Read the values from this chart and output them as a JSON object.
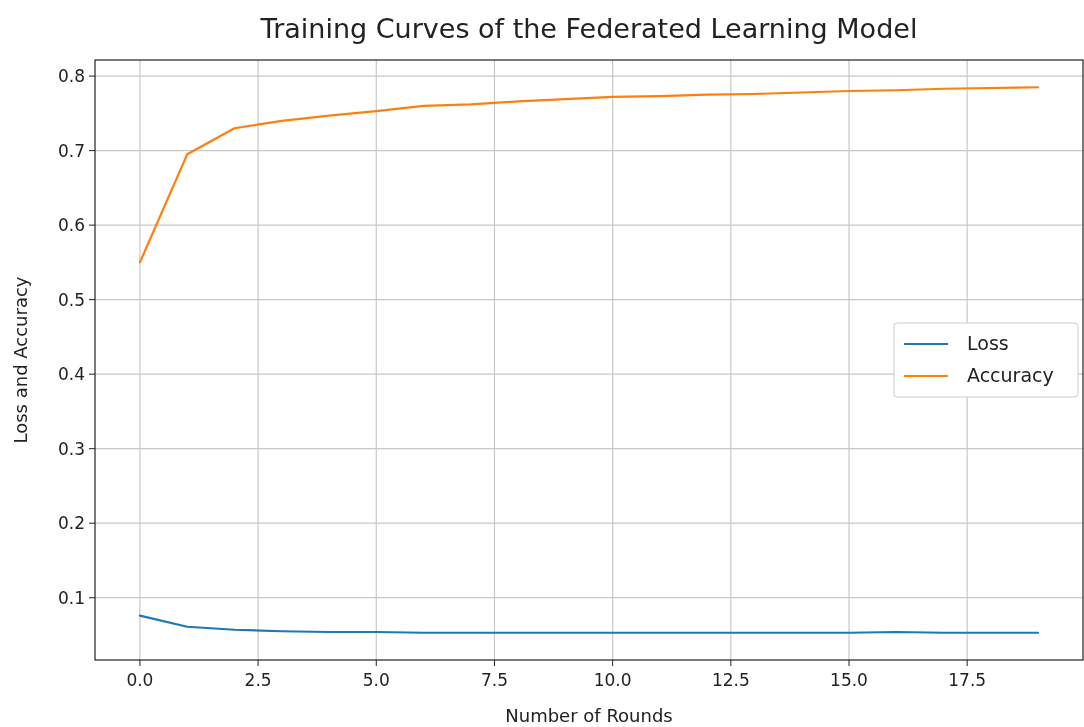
{
  "chart_data": {
    "type": "line",
    "title": "Training Curves of the Federated Learning Model",
    "xlabel": "Number of Rounds",
    "ylabel": "Loss and Accuracy",
    "x": [
      0,
      1,
      2,
      3,
      4,
      5,
      6,
      7,
      8,
      9,
      10,
      11,
      12,
      13,
      14,
      15,
      16,
      17,
      18,
      19
    ],
    "series": [
      {
        "name": "Loss",
        "color": "#1f77b4",
        "values": [
          0.076,
          0.061,
          0.057,
          0.055,
          0.054,
          0.054,
          0.053,
          0.053,
          0.053,
          0.053,
          0.053,
          0.053,
          0.053,
          0.053,
          0.053,
          0.053,
          0.054,
          0.053,
          0.053,
          0.053
        ]
      },
      {
        "name": "Accuracy",
        "color": "#ff7f0e",
        "values": [
          0.55,
          0.695,
          0.73,
          0.74,
          0.747,
          0.753,
          0.76,
          0.762,
          0.766,
          0.769,
          0.772,
          0.773,
          0.775,
          0.776,
          0.778,
          0.78,
          0.781,
          0.783,
          0.784,
          0.785
        ]
      }
    ],
    "xlim": [
      -0.95,
      19.95
    ],
    "ylim": [
      0.0164,
      0.8216
    ],
    "xticks": [
      {
        "value": 0,
        "label": "0.0"
      },
      {
        "value": 2.5,
        "label": "2.5"
      },
      {
        "value": 5,
        "label": "5.0"
      },
      {
        "value": 7.5,
        "label": "7.5"
      },
      {
        "value": 10,
        "label": "10.0"
      },
      {
        "value": 12.5,
        "label": "12.5"
      },
      {
        "value": 15,
        "label": "15.0"
      },
      {
        "value": 17.5,
        "label": "17.5"
      }
    ],
    "yticks": [
      0.1,
      0.2,
      0.3,
      0.4,
      0.5,
      0.6,
      0.7,
      0.8
    ],
    "grid": true,
    "legend": "right",
    "marker": "none",
    "line_style": "solid"
  }
}
